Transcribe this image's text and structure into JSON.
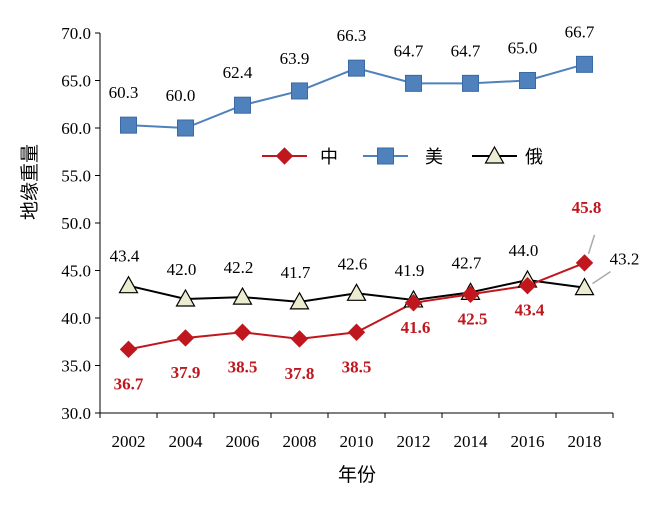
{
  "chart_data": {
    "type": "line",
    "xlabel": "年份",
    "ylabel": "地缘重量",
    "ylim": [
      30,
      70
    ],
    "yticks": [
      "30.0",
      "35.0",
      "40.0",
      "45.0",
      "50.0",
      "55.0",
      "60.0",
      "65.0",
      "70.0"
    ],
    "categories": [
      "2002",
      "2004",
      "2006",
      "2008",
      "2010",
      "2012",
      "2014",
      "2016",
      "2018"
    ],
    "grid": false,
    "legend_position": "center",
    "series": [
      {
        "name": "中",
        "color": "#c0171f",
        "marker": "diamond",
        "values": [
          36.7,
          37.9,
          38.5,
          37.8,
          38.5,
          41.6,
          42.5,
          43.4,
          45.8
        ],
        "labels": [
          "36.7",
          "37.9",
          "38.5",
          "37.8",
          "38.5",
          "41.6",
          "42.5",
          "43.4",
          "45.8"
        ]
      },
      {
        "name": "美",
        "color": "#4f81bd",
        "marker": "square",
        "values": [
          60.3,
          60.0,
          62.4,
          63.9,
          66.3,
          64.7,
          64.7,
          65.0,
          66.7
        ],
        "labels": [
          "60.3",
          "60.0",
          "62.4",
          "63.9",
          "66.3",
          "64.7",
          "64.7",
          "65.0",
          "66.7"
        ]
      },
      {
        "name": "俄",
        "color": "#000000",
        "marker": "triangle",
        "values": [
          43.4,
          42.0,
          42.2,
          41.7,
          42.6,
          41.9,
          42.7,
          44.0,
          43.2
        ],
        "labels": [
          "43.4",
          "42.0",
          "42.2",
          "41.7",
          "42.6",
          "41.9",
          "42.7",
          "44.0",
          "43.2"
        ]
      }
    ]
  }
}
